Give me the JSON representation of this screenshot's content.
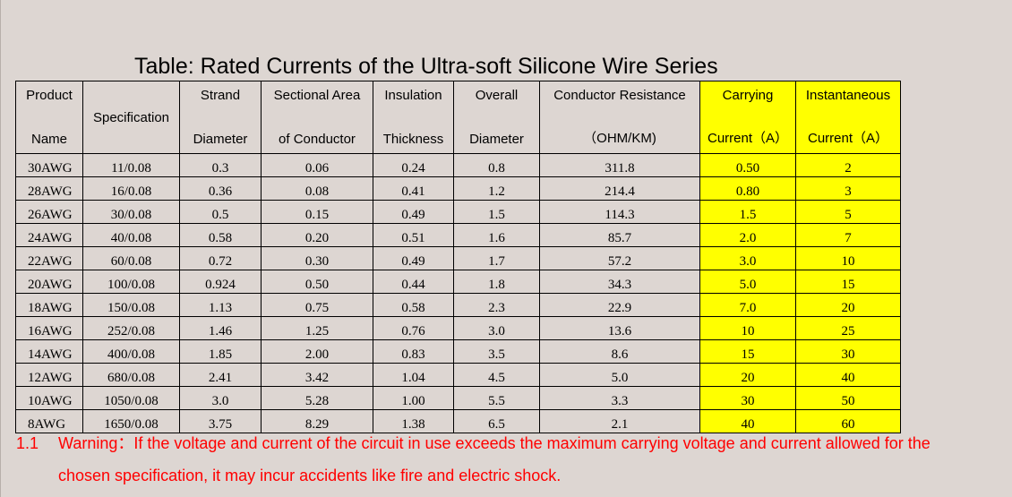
{
  "title": "Table: Rated Currents of the Ultra-soft Silicone Wire Series",
  "columns": [
    {
      "top": "Product",
      "bottom": "Name"
    },
    {
      "top": "Specification",
      "bottom": ""
    },
    {
      "top": "Strand",
      "bottom": "Diameter"
    },
    {
      "top": "Sectional Area",
      "bottom": "of Conductor"
    },
    {
      "top": "Insulation",
      "bottom": "Thickness"
    },
    {
      "top": "Overall",
      "bottom": "Diameter"
    },
    {
      "top": "Conductor Resistance",
      "bottom": "（OHM/KM)"
    },
    {
      "top": "Carrying",
      "bottom": "Current（A）"
    },
    {
      "top": "Instantaneous",
      "bottom": "Current（A）"
    }
  ],
  "rows": [
    [
      "30AWG",
      "11/0.08",
      "0.3",
      "0.06",
      "0.24",
      "0.8",
      "311.8",
      "0.50",
      "2"
    ],
    [
      "28AWG",
      "16/0.08",
      "0.36",
      "0.08",
      "0.41",
      "1.2",
      "214.4",
      "0.80",
      "3"
    ],
    [
      "26AWG",
      "30/0.08",
      "0.5",
      "0.15",
      "0.49",
      "1.5",
      "114.3",
      "1.5",
      "5"
    ],
    [
      "24AWG",
      "40/0.08",
      "0.58",
      "0.20",
      "0.51",
      "1.6",
      "85.7",
      "2.0",
      "7"
    ],
    [
      "22AWG",
      "60/0.08",
      "0.72",
      "0.30",
      "0.49",
      "1.7",
      "57.2",
      "3.0",
      "10"
    ],
    [
      "20AWG",
      "100/0.08",
      "0.924",
      "0.50",
      "0.44",
      "1.8",
      "34.3",
      "5.0",
      "15"
    ],
    [
      "18AWG",
      "150/0.08",
      "1.13",
      "0.75",
      "0.58",
      "2.3",
      "22.9",
      "7.0",
      "20"
    ],
    [
      "16AWG",
      "252/0.08",
      "1.46",
      "1.25",
      "0.76",
      "3.0",
      "13.6",
      "10",
      "25"
    ],
    [
      "14AWG",
      "400/0.08",
      "1.85",
      "2.00",
      "0.83",
      "3.5",
      "8.6",
      "15",
      "30"
    ],
    [
      "12AWG",
      "680/0.08",
      "2.41",
      "3.42",
      "1.04",
      "4.5",
      "5.0",
      "20",
      "40"
    ],
    [
      "10AWG",
      "1050/0.08",
      "3.0",
      "5.28",
      "1.00",
      "5.5",
      "3.3",
      "30",
      "50"
    ],
    [
      "8AWG",
      "1650/0.08",
      "3.75",
      "8.29",
      "1.38",
      "6.5",
      "2.1",
      "40",
      "60"
    ]
  ],
  "highlight_color": "#ffff00",
  "warning": {
    "number": "1.1",
    "line1": "Warning：If the voltage and current of the circuit in use exceeds the maximum carrying voltage and current allowed for the",
    "line2": "chosen specification, it may incur accidents like fire and electric shock.",
    "color": "#ff0000"
  }
}
